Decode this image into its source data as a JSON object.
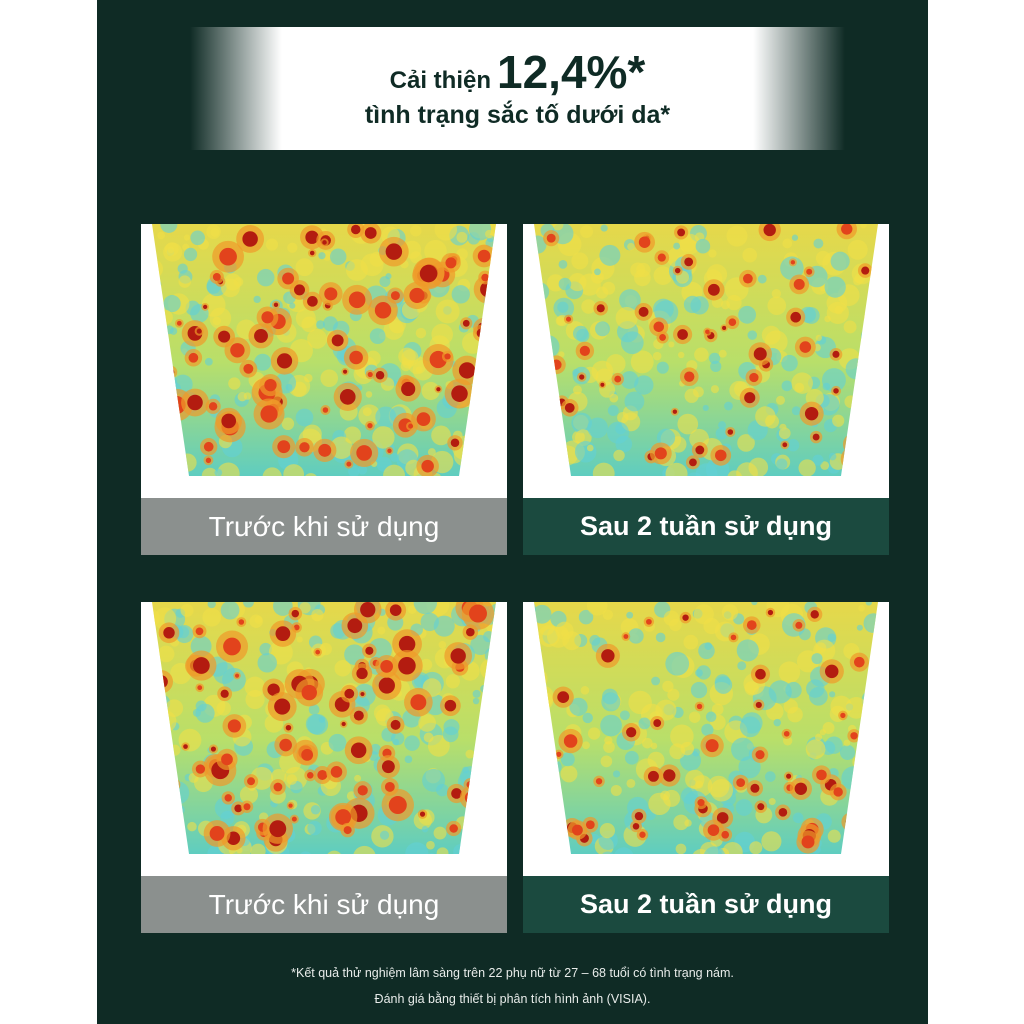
{
  "header": {
    "lead": "Cải thiện",
    "highlight": "12,4%*",
    "subtitle": "tình trạng sắc tố dưới da*"
  },
  "panels": [
    {
      "label": "Trước khi sử dụng"
    },
    {
      "label": "Sau 2 tuần sử dụng"
    },
    {
      "label": "Trước khi sử dụng"
    },
    {
      "label": "Sau 2 tuần sử dụng"
    }
  ],
  "footnote": [
    "*Kết quả thử nghiệm lâm sàng trên 22 phụ nữ từ 27 – 68 tuổi có tình trạng nám.",
    "Đánh giá bằng thiết bị phân tích hình ảnh (VISIA)."
  ]
}
